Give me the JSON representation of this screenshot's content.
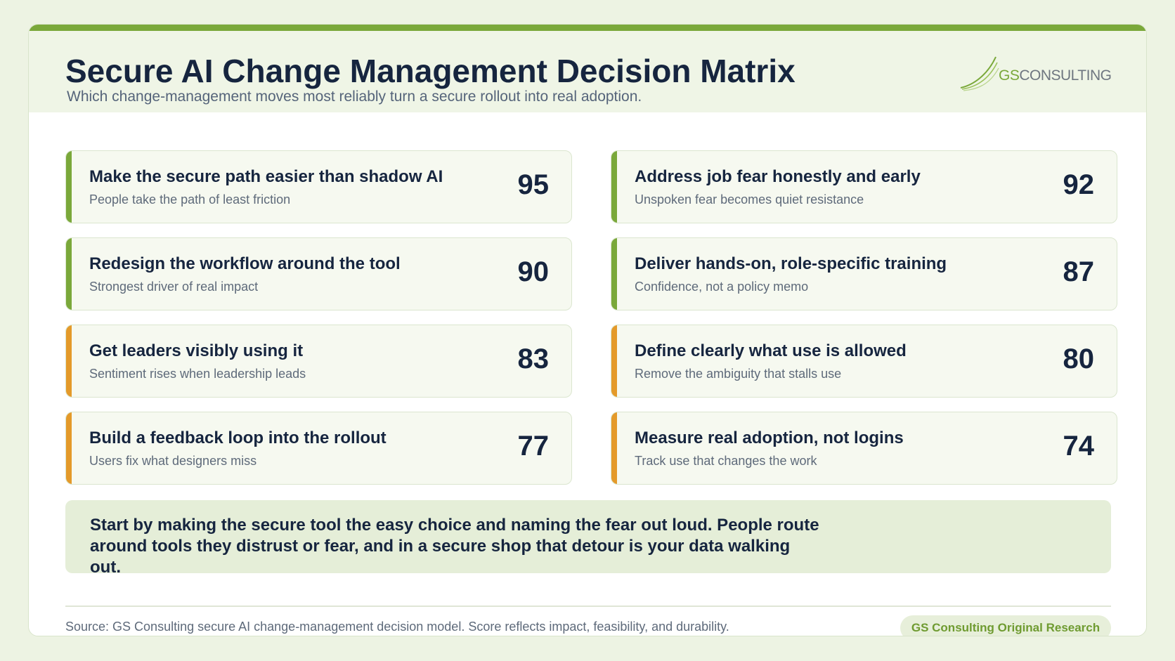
{
  "header": {
    "title": "Secure AI Change Management Decision Matrix",
    "subtitle": "Which change-management moves most reliably turn a secure rollout into real adoption.",
    "logo": {
      "gs": "GS",
      "rest": "CONSULTING"
    }
  },
  "colors": {
    "accent_green": "#7aa83a",
    "accent_orange": "#e49a2a",
    "ink": "#16253f"
  },
  "items": [
    {
      "title": "Make the secure path easier than shadow AI",
      "desc": "People take the path of least friction",
      "score": "95",
      "tier": "green"
    },
    {
      "title": "Address job fear honestly and early",
      "desc": "Unspoken fear becomes quiet resistance",
      "score": "92",
      "tier": "green"
    },
    {
      "title": "Redesign the workflow around the tool",
      "desc": "Strongest driver of real impact",
      "score": "90",
      "tier": "green"
    },
    {
      "title": "Deliver hands-on, role-specific training",
      "desc": "Confidence, not a policy memo",
      "score": "87",
      "tier": "green"
    },
    {
      "title": "Get leaders visibly using it",
      "desc": "Sentiment rises when leadership leads",
      "score": "83",
      "tier": "orange"
    },
    {
      "title": "Define clearly what use is allowed",
      "desc": "Remove the ambiguity that stalls use",
      "score": "80",
      "tier": "orange"
    },
    {
      "title": "Build a feedback loop into the rollout",
      "desc": "Users fix what designers miss",
      "score": "77",
      "tier": "orange"
    },
    {
      "title": "Measure real adoption, not logins",
      "desc": "Track use that changes the work",
      "score": "74",
      "tier": "orange"
    }
  ],
  "callout": "Start by making the secure tool the easy choice and naming the fear out loud. People route around tools they distrust or fear, and in a secure shop that detour is your data walking out.",
  "footer": {
    "source": "Source: GS Consulting secure AI change-management decision model. Score reflects impact, feasibility, and durability.",
    "badge": "GS Consulting Original Research"
  }
}
